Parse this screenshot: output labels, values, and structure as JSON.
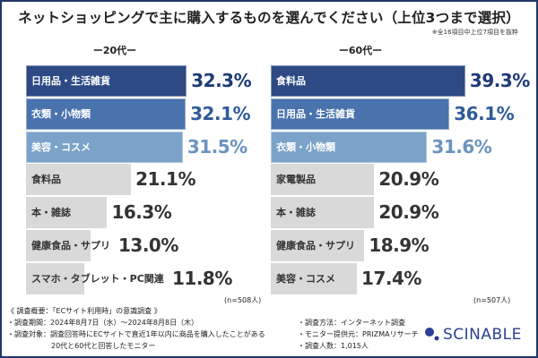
{
  "title": "ネットショッピングで主に購入するものを選んでください（上位3つまで選択）",
  "note": "※全16項目中上位7項目を抜粋",
  "colors": {
    "rank1": "#2d4a85",
    "rank2": "#4a72ad",
    "rank3": "#7ba3c9",
    "other": "#d9d9d9",
    "val1": "#1e3a78",
    "val2": "#2f5b99",
    "val3": "#6a93bf",
    "valOther": "#333333",
    "border": "#1f3768"
  },
  "chart_data": [
    {
      "type": "bar",
      "orientation": "horizontal",
      "title": "ー20代ー",
      "n_label": "(n=508人)",
      "categories": [
        "日用品・生活雑貨",
        "衣類・小物類",
        "美容・コスメ",
        "食料品",
        "本・雑誌",
        "健康食品・サプリ",
        "スマホ・タブレット・PC関連"
      ],
      "values": [
        32.3,
        32.1,
        31.5,
        21.1,
        16.3,
        13.0,
        11.8
      ],
      "value_labels": [
        "32.3%",
        "32.1%",
        "31.5%",
        "21.1%",
        "16.3%",
        "13.0%",
        "11.8%"
      ]
    },
    {
      "type": "bar",
      "orientation": "horizontal",
      "title": "ー60代ー",
      "n_label": "(n=507人)",
      "categories": [
        "食料品",
        "日用品・生活雑貨",
        "衣類・小物類",
        "家電製品",
        "本・雑誌",
        "健康食品・サプリ",
        "美容・コスメ"
      ],
      "values": [
        39.3,
        36.1,
        31.6,
        20.9,
        20.9,
        18.9,
        17.4
      ],
      "value_labels": [
        "39.3%",
        "36.1%",
        "31.6%",
        "20.9%",
        "20.9%",
        "18.9%",
        "17.4%"
      ]
    }
  ],
  "footer": {
    "overview": "《 調査概要：「ECサイト利用時」の意識調査 》",
    "period": "・調査期間：2024年8月7日（水）～2024年8月8日（木）",
    "target1": "・調査対象：調査回答時にECサイトで直近1年以内に商品を購入したことがある",
    "target2": "20代と60代と回答したモニター",
    "method": "・調査方法：インターネット調査",
    "provider": "・モニター提供元：PRIZMAリサーチ",
    "count": "・調査人数：1,015人"
  },
  "logo": "SCINABLE"
}
